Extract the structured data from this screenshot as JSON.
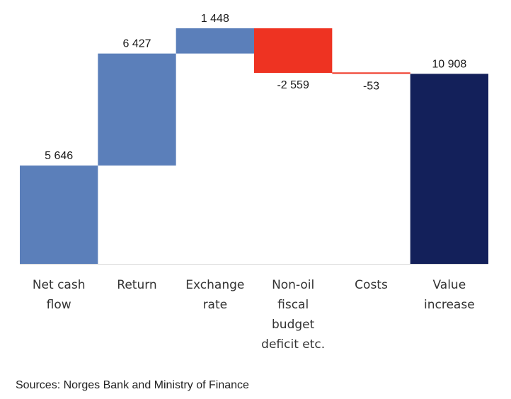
{
  "chart_data": {
    "type": "waterfall",
    "title": "",
    "xlabel": "",
    "ylabel": "",
    "categories": [
      [
        "Net cash",
        "flow"
      ],
      [
        "Return"
      ],
      [
        "Exchange",
        "rate"
      ],
      [
        "Non-oil",
        "fiscal",
        "budget",
        "deficit etc."
      ],
      [
        "Costs"
      ],
      [
        "Value",
        "increase"
      ]
    ],
    "values": [
      5646,
      6427,
      1448,
      -2559,
      -53,
      10908
    ],
    "value_labels": [
      "5 646",
      "6 427",
      "1 448",
      "-2 559",
      "-53",
      "10 908"
    ],
    "is_total": [
      false,
      false,
      false,
      false,
      false,
      true
    ],
    "ylim": [
      0,
      13521
    ],
    "grid": false,
    "colors": {
      "increase": "#5b7fba",
      "decrease": "#ee3322",
      "total": "#13205a"
    }
  },
  "footer": {
    "source": "Sources: Norges Bank and Ministry of Finance"
  }
}
